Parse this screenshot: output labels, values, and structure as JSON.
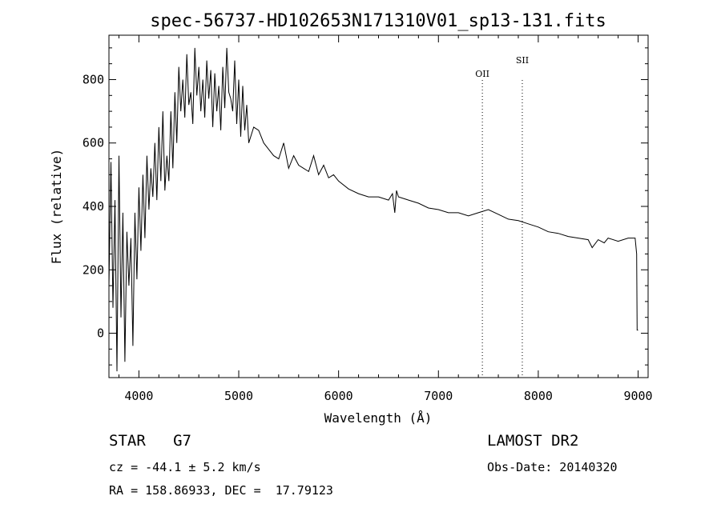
{
  "chart_data": {
    "type": "line",
    "title": "spec-56737-HD102653N171310V01_sp13-131.fits",
    "xlabel": "Wavelength (Å)",
    "ylabel": "Flux (relative)",
    "xlim": [
      3700,
      9100
    ],
    "ylim": [
      -140,
      940
    ],
    "xticks": [
      4000,
      5000,
      6000,
      7000,
      8000,
      9000
    ],
    "yticks": [
      0,
      200,
      400,
      600,
      800
    ],
    "grid": false,
    "legend": "none",
    "line_color": "#000000",
    "emission_lines": [
      {
        "label": "OII",
        "x": 7440
      },
      {
        "label": "SII",
        "x": 7840
      }
    ],
    "series": [
      {
        "x": [
          3700,
          3720,
          3740,
          3760,
          3780,
          3800,
          3820,
          3840,
          3860,
          3880,
          3900,
          3920,
          3940,
          3960,
          3980,
          4000,
          4020,
          4040,
          4060,
          4080,
          4100,
          4120,
          4140,
          4160,
          4180,
          4200,
          4220,
          4240,
          4260,
          4280,
          4300,
          4320,
          4340,
          4360,
          4380,
          4400,
          4420,
          4440,
          4460,
          4480,
          4500,
          4520,
          4540,
          4560,
          4580,
          4600,
          4620,
          4640,
          4660,
          4680,
          4700,
          4720,
          4740,
          4760,
          4780,
          4800,
          4820,
          4840,
          4860,
          4880,
          4900,
          4920,
          4940,
          4960,
          4980,
          5000,
          5020,
          5040,
          5060,
          5080,
          5100,
          5150,
          5200,
          5250,
          5300,
          5350,
          5400,
          5450,
          5500,
          5550,
          5600,
          5650,
          5700,
          5750,
          5800,
          5850,
          5900,
          5950,
          6000,
          6100,
          6200,
          6300,
          6400,
          6500,
          6540,
          6563,
          6580,
          6600,
          6700,
          6800,
          6900,
          7000,
          7100,
          7200,
          7300,
          7400,
          7500,
          7600,
          7700,
          7800,
          7900,
          8000,
          8100,
          8200,
          8300,
          8400,
          8500,
          8540,
          8600,
          8660,
          8700,
          8800,
          8900,
          8970,
          8985,
          8990,
          9000
        ],
        "y": [
          150,
          540,
          80,
          420,
          -120,
          560,
          50,
          380,
          -90,
          320,
          150,
          300,
          -40,
          380,
          170,
          460,
          260,
          500,
          300,
          560,
          390,
          520,
          430,
          600,
          420,
          650,
          480,
          700,
          450,
          560,
          480,
          700,
          520,
          760,
          600,
          840,
          700,
          800,
          680,
          880,
          720,
          760,
          660,
          900,
          750,
          840,
          700,
          800,
          680,
          860,
          740,
          830,
          650,
          820,
          700,
          780,
          640,
          840,
          710,
          900,
          760,
          740,
          700,
          860,
          660,
          800,
          620,
          780,
          640,
          720,
          600,
          650,
          640,
          600,
          580,
          560,
          550,
          600,
          520,
          560,
          530,
          520,
          510,
          560,
          500,
          530,
          490,
          500,
          480,
          455,
          440,
          430,
          430,
          420,
          440,
          380,
          450,
          430,
          420,
          410,
          395,
          390,
          380,
          380,
          370,
          380,
          390,
          375,
          360,
          355,
          345,
          335,
          320,
          315,
          305,
          300,
          295,
          270,
          295,
          285,
          300,
          290,
          300,
          300,
          250,
          10,
          10
        ]
      }
    ]
  },
  "footer": {
    "class_label": "STAR   G7",
    "cz": "cz = -44.1 ± 5.2 km/s",
    "radec": "RA = 158.86933, DEC =  17.79123",
    "survey": "LAMOST DR2",
    "obs_date": "Obs-Date: 20140320"
  }
}
